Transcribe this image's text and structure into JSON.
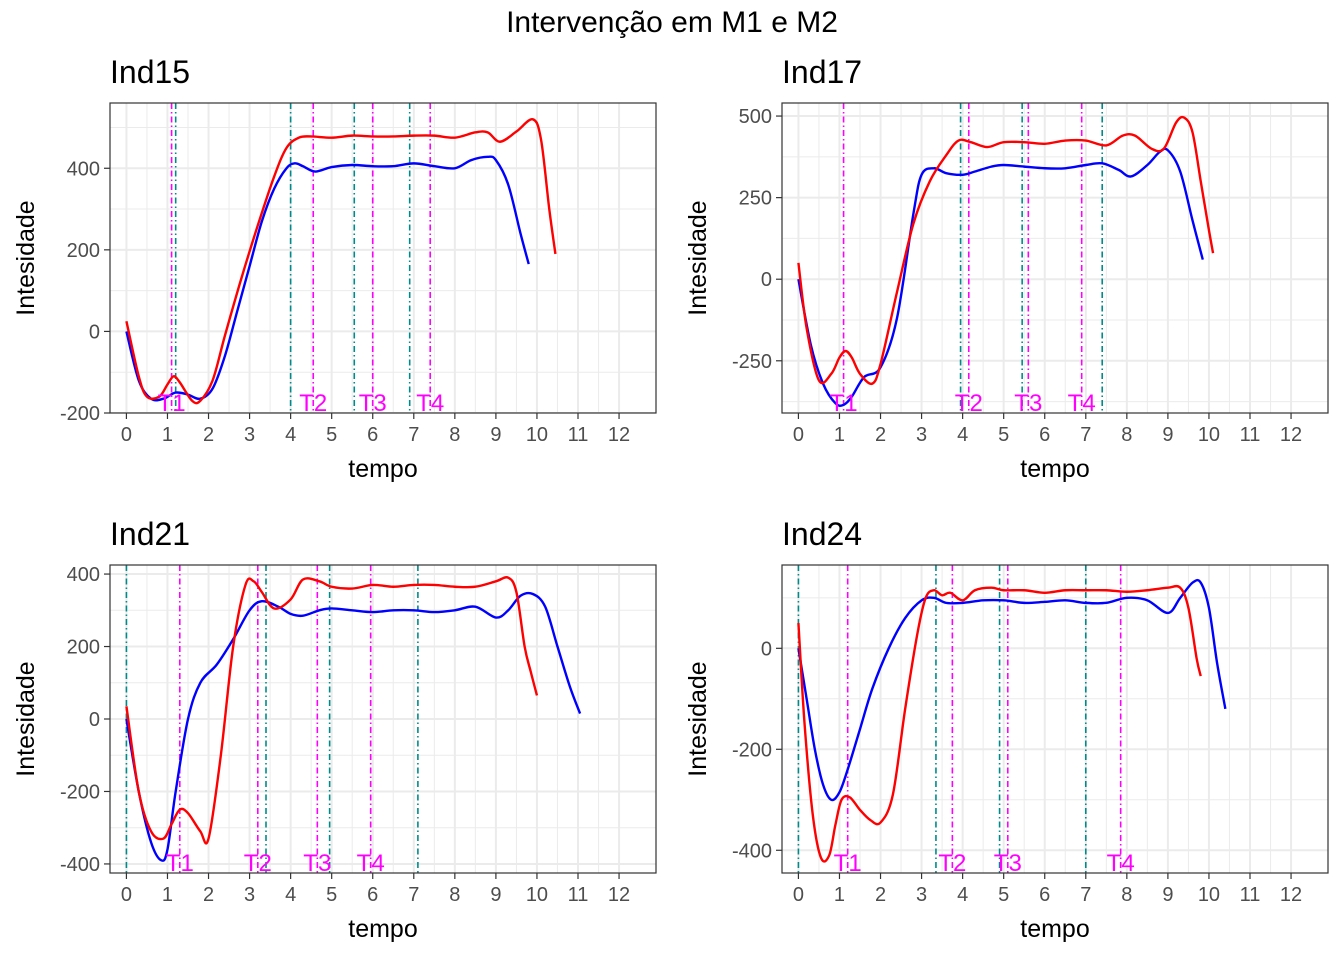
{
  "title": "Intervenção em M1 e M2",
  "colors": {
    "m1": "#0000ff",
    "m2": "#ff0000",
    "vline_m1": "#008b8b",
    "vline_m2": "#ff00ff",
    "grid": "#ebebeb",
    "panel_border": "#333333"
  },
  "chart_data": [
    {
      "type": "line",
      "title": "Ind15",
      "xlabel": "tempo",
      "ylabel": "Intesidade",
      "xlim": [
        -0.4,
        12.9
      ],
      "ylim": [
        -200,
        560
      ],
      "xticks": [
        0,
        1,
        2,
        3,
        4,
        5,
        6,
        7,
        8,
        9,
        10,
        11,
        12
      ],
      "yticks": [
        -200,
        0,
        200,
        400
      ],
      "series": [
        {
          "color": "#0000ff",
          "x": [
            0,
            0.3,
            0.6,
            0.9,
            1.2,
            1.5,
            1.8,
            2.1,
            2.4,
            2.7,
            3.0,
            3.3,
            3.6,
            3.9,
            4.1,
            4.3,
            4.6,
            5.0,
            5.5,
            6.0,
            6.5,
            7.0,
            7.5,
            8.0,
            8.4,
            8.8,
            9.0,
            9.3,
            9.6,
            9.8
          ],
          "y": [
            0,
            -120,
            -165,
            -165,
            -150,
            -155,
            -165,
            -140,
            -60,
            50,
            160,
            270,
            350,
            400,
            412,
            405,
            392,
            403,
            408,
            405,
            405,
            412,
            405,
            400,
            420,
            428,
            420,
            360,
            240,
            165
          ]
        },
        {
          "color": "#ff0000",
          "x": [
            0,
            0.3,
            0.5,
            0.8,
            1.0,
            1.15,
            1.3,
            1.6,
            1.8,
            2.1,
            2.4,
            2.8,
            3.2,
            3.6,
            3.9,
            4.2,
            4.5,
            5.0,
            5.5,
            6.0,
            6.5,
            7.0,
            7.5,
            8.0,
            8.5,
            8.8,
            9.1,
            9.5,
            9.9,
            10.1,
            10.3,
            10.45
          ],
          "y": [
            25,
            -110,
            -160,
            -160,
            -130,
            -110,
            -125,
            -170,
            -170,
            -120,
            -10,
            130,
            260,
            380,
            450,
            475,
            478,
            475,
            480,
            478,
            478,
            480,
            480,
            475,
            488,
            488,
            465,
            490,
            520,
            470,
            300,
            190
          ]
        }
      ],
      "vlines": [
        {
          "x": 1.1,
          "color": "#ff00ff",
          "label": "T1"
        },
        {
          "x": 1.2,
          "color": "#008b8b",
          "label": ""
        },
        {
          "x": 4.0,
          "color": "#008b8b",
          "label": ""
        },
        {
          "x": 4.55,
          "color": "#ff00ff",
          "label": "T2"
        },
        {
          "x": 5.55,
          "color": "#008b8b",
          "label": ""
        },
        {
          "x": 6.0,
          "color": "#ff00ff",
          "label": "T3"
        },
        {
          "x": 6.9,
          "color": "#008b8b",
          "label": ""
        },
        {
          "x": 7.4,
          "color": "#ff00ff",
          "label": "T4"
        }
      ]
    },
    {
      "type": "line",
      "title": "Ind17",
      "xlabel": "tempo",
      "ylabel": "Intesidade",
      "xlim": [
        -0.4,
        12.9
      ],
      "ylim": [
        -410,
        540
      ],
      "xticks": [
        0,
        1,
        2,
        3,
        4,
        5,
        6,
        7,
        8,
        9,
        10,
        11,
        12
      ],
      "yticks": [
        -250,
        0,
        250,
        500
      ],
      "series": [
        {
          "color": "#0000ff",
          "x": [
            0,
            0.3,
            0.6,
            0.9,
            1.1,
            1.3,
            1.6,
            2.0,
            2.4,
            2.8,
            3.0,
            3.3,
            3.6,
            4.0,
            4.3,
            4.7,
            5.0,
            5.5,
            6.0,
            6.5,
            7.0,
            7.4,
            7.8,
            8.1,
            8.5,
            8.8,
            9.0,
            9.3,
            9.6,
            9.85
          ],
          "y": [
            0,
            -200,
            -320,
            -380,
            -385,
            -360,
            -300,
            -270,
            -120,
            200,
            320,
            340,
            325,
            320,
            330,
            345,
            350,
            345,
            340,
            340,
            350,
            355,
            335,
            315,
            350,
            390,
            395,
            330,
            180,
            60
          ]
        },
        {
          "color": "#ff0000",
          "x": [
            0,
            0.2,
            0.5,
            0.8,
            1.0,
            1.15,
            1.3,
            1.5,
            1.8,
            2.0,
            2.4,
            2.8,
            3.2,
            3.6,
            3.9,
            4.2,
            4.6,
            5.0,
            5.5,
            6.0,
            6.5,
            7.0,
            7.5,
            7.9,
            8.2,
            8.6,
            8.9,
            9.2,
            9.4,
            9.6,
            9.8,
            10.0,
            10.1
          ],
          "y": [
            50,
            -150,
            -310,
            -290,
            -240,
            -220,
            -240,
            -290,
            -320,
            -260,
            -40,
            170,
            300,
            380,
            425,
            420,
            405,
            420,
            420,
            415,
            425,
            425,
            410,
            440,
            440,
            400,
            400,
            480,
            495,
            450,
            300,
            150,
            80
          ]
        }
      ],
      "vlines": [
        {
          "x": 1.1,
          "color": "#ff00ff",
          "label": "T1"
        },
        {
          "x": 3.95,
          "color": "#008b8b",
          "label": ""
        },
        {
          "x": 4.15,
          "color": "#ff00ff",
          "label": "T2"
        },
        {
          "x": 5.45,
          "color": "#008b8b",
          "label": ""
        },
        {
          "x": 5.6,
          "color": "#ff00ff",
          "label": "T3"
        },
        {
          "x": 6.9,
          "color": "#ff00ff",
          "label": "T4"
        },
        {
          "x": 7.4,
          "color": "#008b8b",
          "label": ""
        }
      ]
    },
    {
      "type": "line",
      "title": "Ind21",
      "xlabel": "tempo",
      "ylabel": "Intesidade",
      "xlim": [
        -0.4,
        12.9
      ],
      "ylim": [
        -425,
        425
      ],
      "xticks": [
        0,
        1,
        2,
        3,
        4,
        5,
        6,
        7,
        8,
        9,
        10,
        11,
        12
      ],
      "yticks": [
        -400,
        -200,
        0,
        200,
        400
      ],
      "series": [
        {
          "color": "#0000ff",
          "x": [
            0,
            0.3,
            0.6,
            0.85,
            1.0,
            1.2,
            1.5,
            1.8,
            2.2,
            2.6,
            3.0,
            3.3,
            3.7,
            4.0,
            4.3,
            4.7,
            5.0,
            5.5,
            6.0,
            6.5,
            7.0,
            7.5,
            8.0,
            8.5,
            9.0,
            9.3,
            9.6,
            9.9,
            10.2,
            10.5,
            10.8,
            11.05
          ],
          "y": [
            0,
            -200,
            -340,
            -390,
            -360,
            -200,
            0,
            100,
            150,
            220,
            300,
            325,
            310,
            290,
            285,
            300,
            305,
            300,
            295,
            300,
            300,
            295,
            300,
            310,
            280,
            300,
            340,
            345,
            310,
            200,
            90,
            15
          ]
        },
        {
          "color": "#ff0000",
          "x": [
            0,
            0.3,
            0.6,
            0.9,
            1.1,
            1.3,
            1.5,
            1.8,
            2.0,
            2.3,
            2.6,
            2.9,
            3.1,
            3.3,
            3.6,
            4.0,
            4.3,
            4.7,
            5.0,
            5.5,
            6.0,
            6.5,
            7.0,
            7.5,
            8.0,
            8.5,
            9.0,
            9.3,
            9.5,
            9.7,
            9.85,
            10.0
          ],
          "y": [
            35,
            -200,
            -310,
            -330,
            -290,
            -250,
            -260,
            -310,
            -330,
            -100,
            200,
            370,
            380,
            350,
            305,
            330,
            385,
            380,
            365,
            360,
            370,
            365,
            370,
            370,
            365,
            365,
            380,
            390,
            350,
            200,
            130,
            65
          ]
        }
      ],
      "vlines": [
        {
          "x": 0.0,
          "color": "#008b8b",
          "label": ""
        },
        {
          "x": 1.3,
          "color": "#ff00ff",
          "label": "T1"
        },
        {
          "x": 3.2,
          "color": "#ff00ff",
          "label": "T2"
        },
        {
          "x": 3.4,
          "color": "#008b8b",
          "label": ""
        },
        {
          "x": 4.65,
          "color": "#ff00ff",
          "label": "T3"
        },
        {
          "x": 4.95,
          "color": "#008b8b",
          "label": ""
        },
        {
          "x": 5.95,
          "color": "#ff00ff",
          "label": "T4"
        },
        {
          "x": 7.1,
          "color": "#008b8b",
          "label": ""
        }
      ]
    },
    {
      "type": "line",
      "title": "Ind24",
      "xlabel": "tempo",
      "ylabel": "Intesidade",
      "xlim": [
        -0.4,
        12.9
      ],
      "ylim": [
        -445,
        165
      ],
      "xticks": [
        0,
        1,
        2,
        3,
        4,
        5,
        6,
        7,
        8,
        9,
        10,
        11,
        12
      ],
      "yticks": [
        -400,
        -200,
        0
      ],
      "series": [
        {
          "color": "#0000ff",
          "x": [
            0,
            0.2,
            0.4,
            0.6,
            0.8,
            1.0,
            1.2,
            1.5,
            1.8,
            2.2,
            2.6,
            3.0,
            3.3,
            3.6,
            4.0,
            4.5,
            5.0,
            5.5,
            6.0,
            6.5,
            7.0,
            7.5,
            8.0,
            8.5,
            9.0,
            9.3,
            9.6,
            9.8,
            10.0,
            10.2,
            10.4
          ],
          "y": [
            0,
            -100,
            -200,
            -270,
            -300,
            -285,
            -240,
            -160,
            -80,
            0,
            60,
            95,
            100,
            90,
            90,
            95,
            95,
            90,
            92,
            95,
            90,
            90,
            100,
            95,
            70,
            100,
            130,
            130,
            80,
            -30,
            -120
          ]
        },
        {
          "color": "#ff0000",
          "x": [
            0,
            0.15,
            0.35,
            0.55,
            0.75,
            0.9,
            1.05,
            1.25,
            1.5,
            1.75,
            2.0,
            2.3,
            2.6,
            2.9,
            3.1,
            3.3,
            3.5,
            3.7,
            4.0,
            4.3,
            4.7,
            5.0,
            5.5,
            6.0,
            6.5,
            7.0,
            7.5,
            8.0,
            8.5,
            9.0,
            9.3,
            9.5,
            9.7,
            9.8
          ],
          "y": [
            50,
            -150,
            -330,
            -415,
            -410,
            -350,
            -300,
            -295,
            -320,
            -340,
            -345,
            -290,
            -120,
            30,
            100,
            115,
            105,
            110,
            95,
            115,
            120,
            115,
            115,
            110,
            115,
            115,
            115,
            112,
            115,
            120,
            120,
            80,
            -20,
            -55
          ]
        }
      ],
      "vlines": [
        {
          "x": 0.0,
          "color": "#008b8b",
          "label": ""
        },
        {
          "x": 1.2,
          "color": "#ff00ff",
          "label": "T1"
        },
        {
          "x": 3.35,
          "color": "#008b8b",
          "label": ""
        },
        {
          "x": 3.75,
          "color": "#ff00ff",
          "label": "T2"
        },
        {
          "x": 4.9,
          "color": "#008b8b",
          "label": ""
        },
        {
          "x": 5.1,
          "color": "#ff00ff",
          "label": "T3"
        },
        {
          "x": 7.0,
          "color": "#008b8b",
          "label": ""
        },
        {
          "x": 7.85,
          "color": "#ff00ff",
          "label": "T4"
        }
      ]
    }
  ]
}
